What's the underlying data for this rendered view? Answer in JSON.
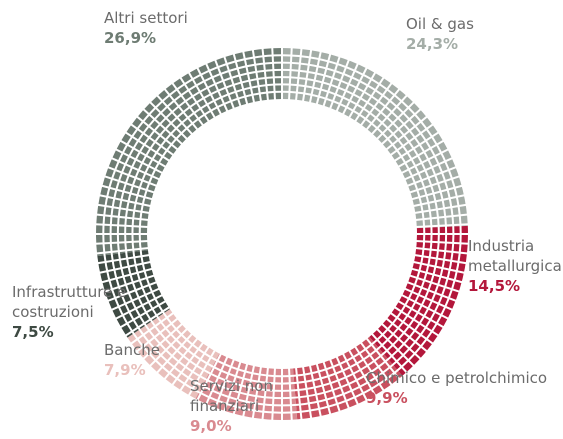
{
  "chart_data": {
    "type": "pie",
    "categories": [
      "Oil & gas",
      "Industria metallurgica",
      "Chimico e petrolchimico",
      "Servizi non finanziari",
      "Banche",
      "Infrastrutture e costruzioni",
      "Altri settori"
    ],
    "values": [
      24.3,
      14.5,
      9.9,
      9.0,
      7.9,
      7.5,
      26.9
    ],
    "value_labels": [
      "24,3%",
      "14,5%",
      "9,9%",
      "9,0%",
      "7,9%",
      "7,5%",
      "26,9%"
    ],
    "colors": [
      "#a4ada7",
      "#b3173b",
      "#c9505f",
      "#d98a90",
      "#e9c0bc",
      "#3e4a43",
      "#6e7c73"
    ]
  }
}
